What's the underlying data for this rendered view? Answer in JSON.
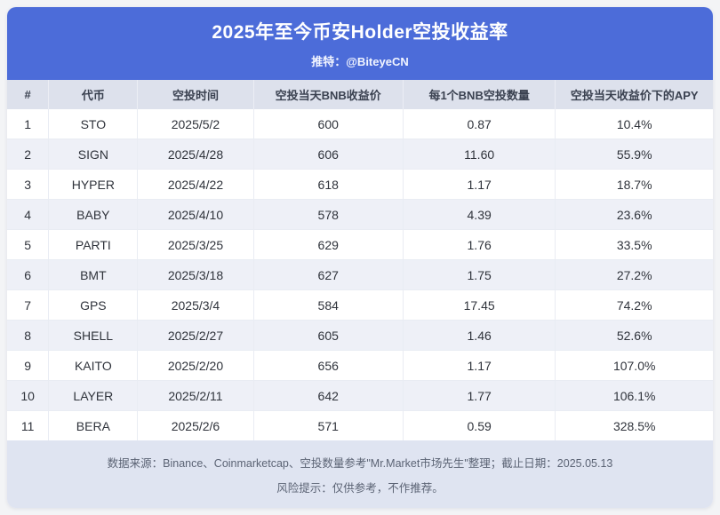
{
  "header": {
    "title": "2025年至今币安Holder空投收益率",
    "subtitle": "推特：@BiteyeCN"
  },
  "chart_data": {
    "type": "table",
    "title": "2025年至今币安Holder空投收益率",
    "columns": [
      "#",
      "代币",
      "空投时间",
      "空投当天BNB收益价",
      "每1个BNB空投数量",
      "空投当天收益价下的APY"
    ],
    "rows": [
      [
        "1",
        "STO",
        "2025/5/2",
        "600",
        "0.87",
        "10.4%"
      ],
      [
        "2",
        "SIGN",
        "2025/4/28",
        "606",
        "11.60",
        "55.9%"
      ],
      [
        "3",
        "HYPER",
        "2025/4/22",
        "618",
        "1.17",
        "18.7%"
      ],
      [
        "4",
        "BABY",
        "2025/4/10",
        "578",
        "4.39",
        "23.6%"
      ],
      [
        "5",
        "PARTI",
        "2025/3/25",
        "629",
        "1.76",
        "33.5%"
      ],
      [
        "6",
        "BMT",
        "2025/3/18",
        "627",
        "1.75",
        "27.2%"
      ],
      [
        "7",
        "GPS",
        "2025/3/4",
        "584",
        "17.45",
        "74.2%"
      ],
      [
        "8",
        "SHELL",
        "2025/2/27",
        "605",
        "1.46",
        "52.6%"
      ],
      [
        "9",
        "KAITO",
        "2025/2/20",
        "656",
        "1.17",
        "107.0%"
      ],
      [
        "10",
        "LAYER",
        "2025/2/11",
        "642",
        "1.77",
        "106.1%"
      ],
      [
        "11",
        "BERA",
        "2025/2/6",
        "571",
        "0.59",
        "328.5%"
      ]
    ]
  },
  "footer": {
    "source_line": "数据来源：Binance、Coinmarketcap、空投数量参考\"Mr.Market市场先生\"整理；截止日期：2025.05.13",
    "risk_line": "风险提示：仅供参考，不作推荐。"
  },
  "colors": {
    "banner_blue": "#4c6cd9",
    "header_row_bg": "#dde1ec",
    "row_alt_bg": "#eef0f7",
    "footer_bg": "#dfe4f1"
  }
}
